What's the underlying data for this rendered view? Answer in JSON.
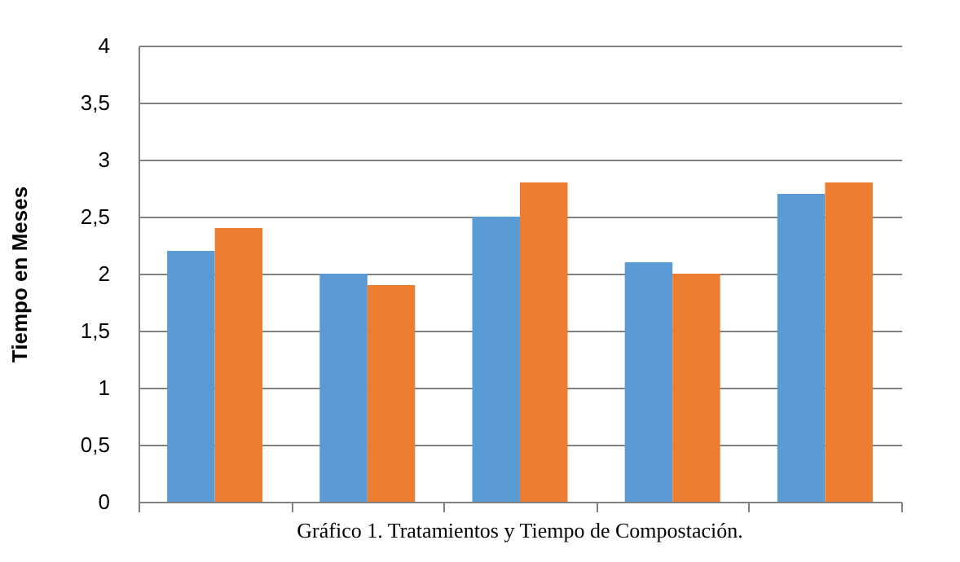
{
  "chart_data": {
    "type": "bar",
    "title": "Gráfico 1. Tratamientos y Tiempo de Compostación.",
    "ylabel": "Tiempo en Meses",
    "categories": [
      null,
      null,
      null,
      null,
      null
    ],
    "series": [
      {
        "color": "#5b9bd5",
        "values": [
          2.2,
          2.0,
          2.5,
          2.1,
          2.7
        ]
      },
      {
        "color": "#ed7d31",
        "values": [
          2.4,
          1.9,
          2.8,
          2.0,
          2.8
        ]
      }
    ],
    "ylim": [
      0,
      4
    ],
    "yticks": [
      0,
      {
        "value": 0.5,
        "label": "0,5"
      },
      1,
      {
        "value": 1.5,
        "label": "1,5"
      },
      2,
      {
        "value": 2.5,
        "label": "2,5"
      },
      3,
      {
        "value": 3.5,
        "label": "3,5"
      },
      4
    ],
    "grid": "y",
    "legend": false
  }
}
